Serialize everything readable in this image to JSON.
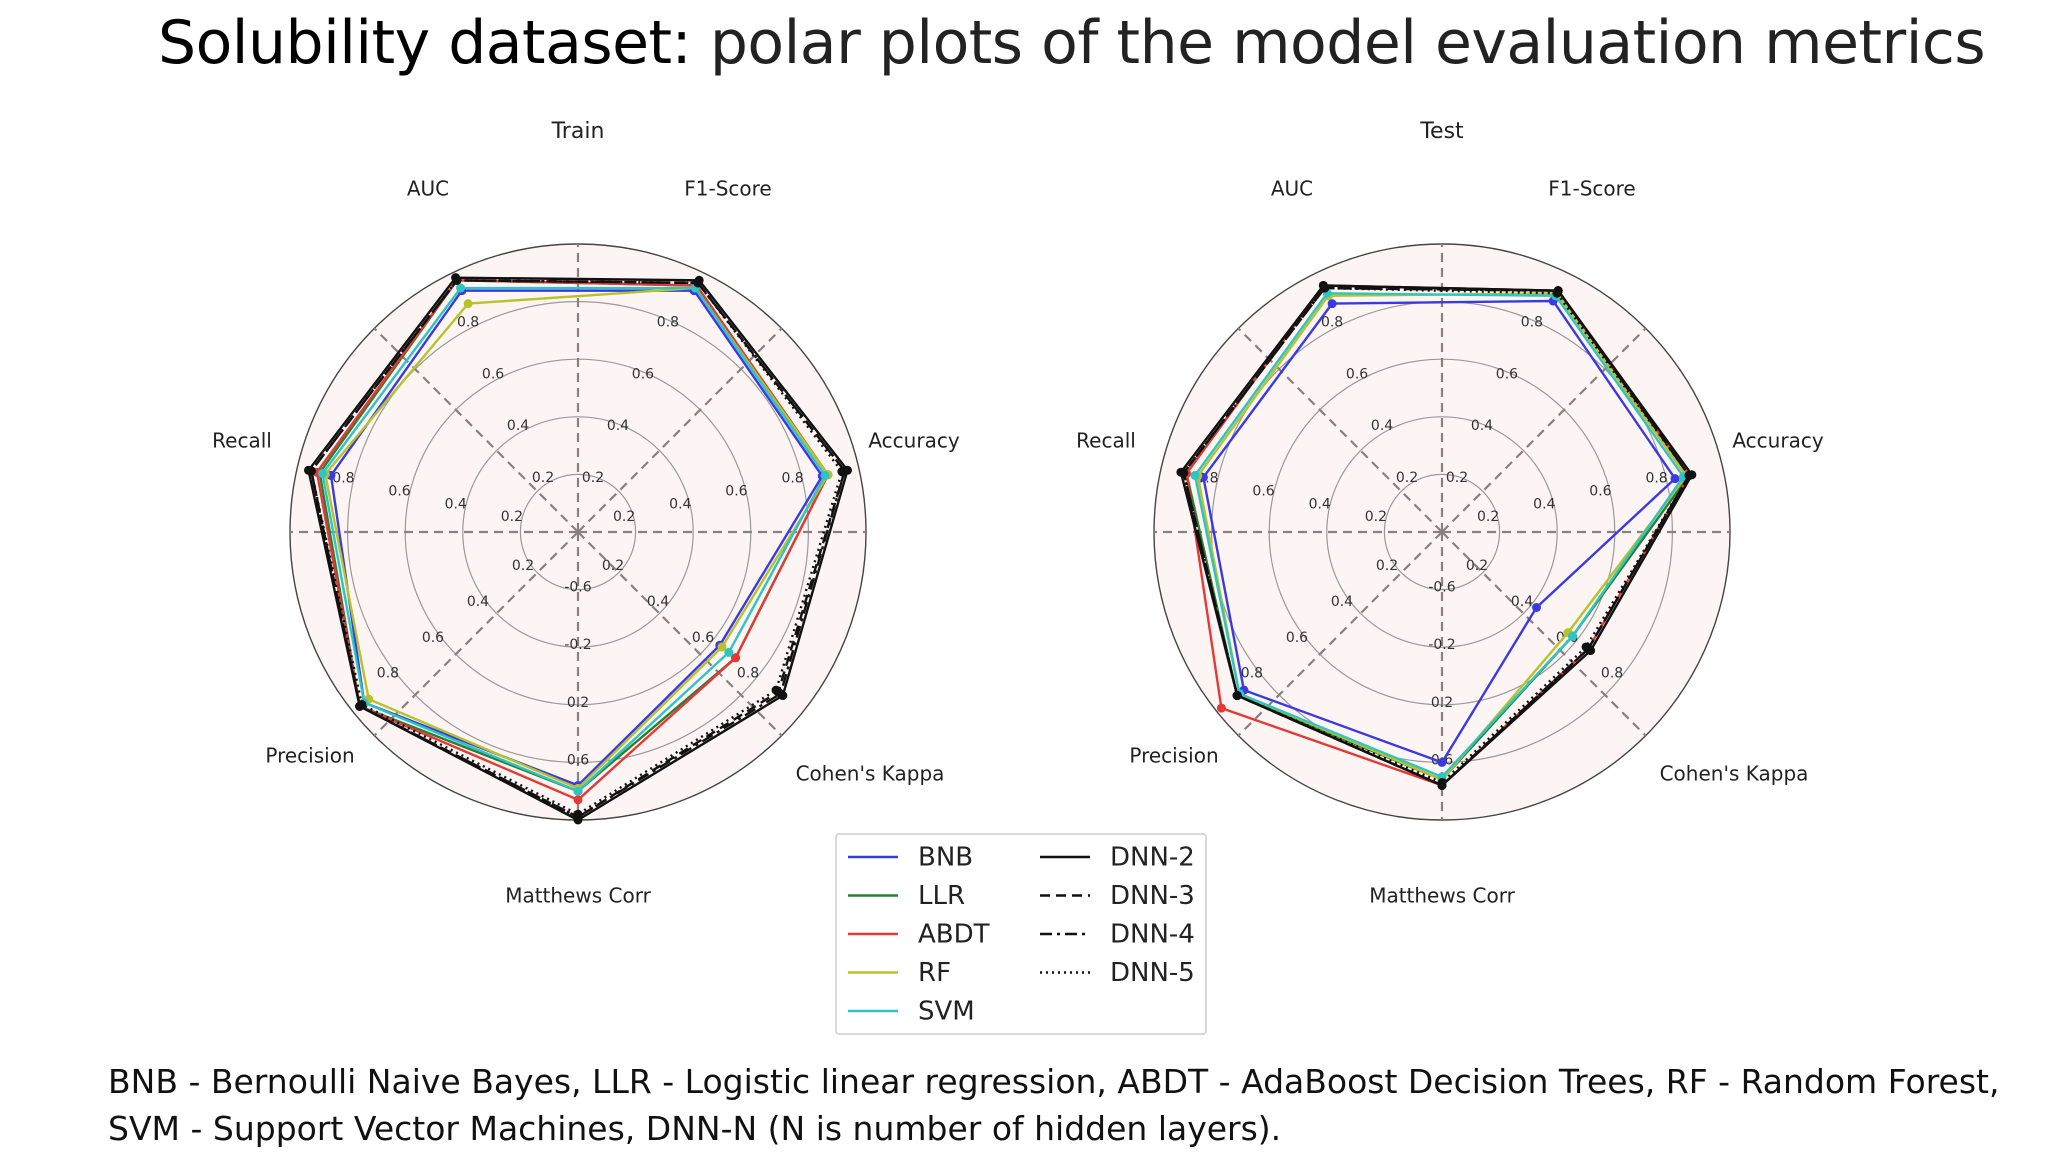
{
  "slide": {
    "title_bold": "Solubility dataset:",
    "title_rest": " polar plots of the model evaluation metrics",
    "footnote_line1": "BNB - Bernoulli Naive Bayes, LLR - Logistic linear regression, ABDT - AdaBoost Decision Trees, RF - Random Forest,",
    "footnote_line2": "SVM - Support Vector Machines, DNN-N (N is number of hidden layers)."
  },
  "chart_data": [
    {
      "type": "radar",
      "title": "Train",
      "axes": [
        "F1-Score",
        "Accuracy",
        "Cohen's Kappa",
        "Matthews Corr",
        "Precision",
        "Recall",
        "AUC"
      ],
      "r_ticks": [
        "0.2",
        "0.4",
        "0.6",
        "0.8"
      ],
      "r_ticks_lower": [
        "-0.6",
        "-0.2",
        "0.2",
        "0.6"
      ],
      "rlim": [
        0,
        1
      ],
      "grid": true,
      "series": [
        {
          "name": "BNB",
          "color": "#3a3ae0",
          "style": "solid",
          "values": [
            0.93,
            0.87,
            0.63,
            0.88,
            0.95,
            0.88,
            0.93
          ]
        },
        {
          "name": "LLR",
          "color": "#2e7d32",
          "style": "solid",
          "values": [
            0.95,
            0.89,
            0.7,
            0.9,
            0.97,
            0.92,
            0.97
          ]
        },
        {
          "name": "ABDT",
          "color": "#e53935",
          "style": "solid",
          "values": [
            0.95,
            0.89,
            0.7,
            0.93,
            0.97,
            0.93,
            0.97
          ]
        },
        {
          "name": "RF",
          "color": "#b8c22a",
          "style": "solid",
          "values": [
            0.94,
            0.89,
            0.64,
            0.89,
            0.93,
            0.9,
            0.88
          ]
        },
        {
          "name": "SVM",
          "color": "#2ec4c4",
          "style": "solid",
          "values": [
            0.94,
            0.88,
            0.67,
            0.9,
            0.95,
            0.91,
            0.94
          ]
        },
        {
          "name": "DNN-2",
          "color": "#111111",
          "style": "solid",
          "values": [
            0.97,
            0.96,
            0.91,
            1.0,
            0.97,
            0.96,
            0.98
          ]
        },
        {
          "name": "DNN-3",
          "color": "#111111",
          "style": "dashed",
          "values": [
            0.96,
            0.95,
            0.89,
            0.99,
            0.97,
            0.95,
            0.97
          ]
        },
        {
          "name": "DNN-4",
          "color": "#111111",
          "style": "dashdot",
          "values": [
            0.96,
            0.95,
            0.9,
            0.99,
            0.97,
            0.95,
            0.97
          ]
        },
        {
          "name": "DNN-5",
          "color": "#111111",
          "style": "dotted",
          "values": [
            0.96,
            0.94,
            0.88,
            0.98,
            0.96,
            0.95,
            0.97
          ]
        }
      ]
    },
    {
      "type": "radar",
      "title": "Test",
      "axes": [
        "F1-Score",
        "Accuracy",
        "Cohen's Kappa",
        "Matthews Corr",
        "Precision",
        "Recall",
        "AUC"
      ],
      "r_ticks": [
        "0.2",
        "0.4",
        "0.6",
        "0.8"
      ],
      "r_ticks_lower": [
        "-0.6",
        "-0.2",
        "0.2",
        "0.6"
      ],
      "rlim": [
        0,
        1
      ],
      "grid": true,
      "series": [
        {
          "name": "BNB",
          "color": "#3a3ae0",
          "style": "solid",
          "values": [
            0.89,
            0.83,
            0.42,
            0.8,
            0.88,
            0.85,
            0.88
          ]
        },
        {
          "name": "LLR",
          "color": "#2e7d32",
          "style": "solid",
          "values": [
            0.93,
            0.88,
            0.58,
            0.86,
            0.91,
            0.91,
            0.95
          ]
        },
        {
          "name": "ABDT",
          "color": "#e53935",
          "style": "solid",
          "values": [
            0.93,
            0.88,
            0.65,
            0.88,
            0.98,
            0.91,
            0.95
          ]
        },
        {
          "name": "RF",
          "color": "#b8c22a",
          "style": "solid",
          "values": [
            0.92,
            0.87,
            0.56,
            0.86,
            0.9,
            0.87,
            0.91
          ]
        },
        {
          "name": "SVM",
          "color": "#2ec4c4",
          "style": "solid",
          "values": [
            0.91,
            0.86,
            0.58,
            0.85,
            0.9,
            0.88,
            0.92
          ]
        },
        {
          "name": "DNN-2",
          "color": "#111111",
          "style": "solid",
          "values": [
            0.93,
            0.89,
            0.66,
            0.88,
            0.91,
            0.93,
            0.95
          ]
        },
        {
          "name": "DNN-3",
          "color": "#111111",
          "style": "dashed",
          "values": [
            0.93,
            0.88,
            0.65,
            0.88,
            0.91,
            0.92,
            0.94
          ]
        },
        {
          "name": "DNN-4",
          "color": "#111111",
          "style": "dashdot",
          "values": [
            0.93,
            0.88,
            0.65,
            0.88,
            0.91,
            0.92,
            0.94
          ]
        },
        {
          "name": "DNN-5",
          "color": "#111111",
          "style": "dotted",
          "values": [
            0.92,
            0.88,
            0.64,
            0.87,
            0.91,
            0.92,
            0.94
          ]
        }
      ]
    }
  ],
  "legend": {
    "placement": "bottom-center",
    "col1": [
      "BNB",
      "LLR",
      "ABDT",
      "RF",
      "SVM"
    ],
    "col2": [
      "DNN-2",
      "DNN-3",
      "DNN-4",
      "DNN-5"
    ]
  }
}
